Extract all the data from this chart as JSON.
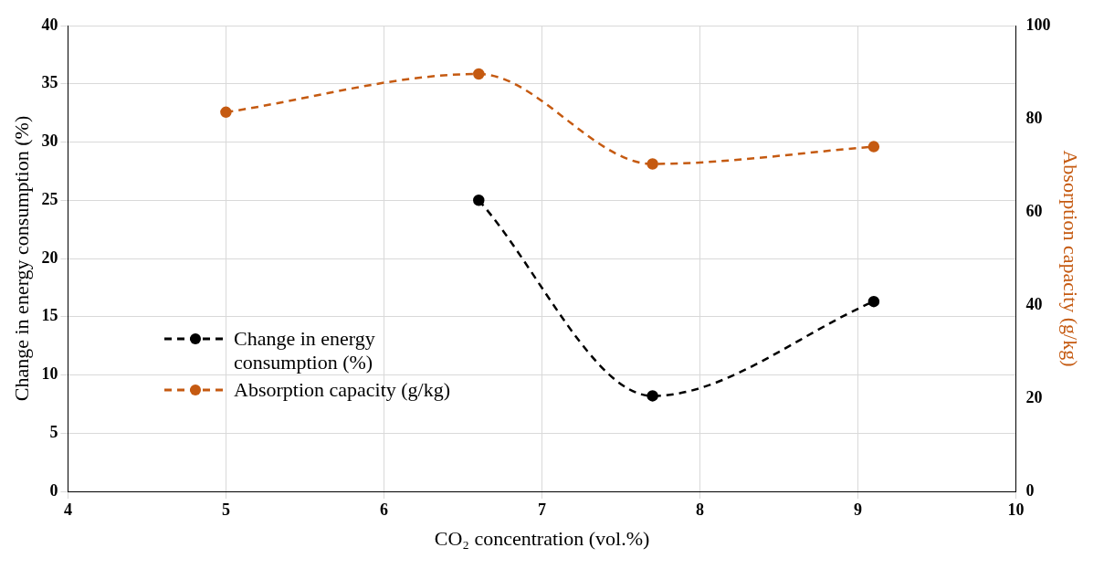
{
  "chart_data": {
    "type": "line",
    "xlabel": "CO₂ concentration (vol.%)",
    "ylabel": "Change in energy consumption (%)",
    "y2label": "Absorption capacity (g/kg)",
    "series": [
      {
        "name": "Change in energy consumption (%)",
        "color": "#000000",
        "x": [
          6.6,
          7.7,
          9.1
        ],
        "values": [
          25.0,
          8.2,
          16.3
        ]
      },
      {
        "name": "Absorption capacity (g/kg)",
        "color": "#c55a11",
        "axis": "y2",
        "x": [
          5,
          6.6,
          7.7,
          9.1
        ],
        "values": [
          81.4,
          89.6,
          70.3,
          74.0
        ]
      }
    ],
    "xlim": [
      4,
      10
    ],
    "xticks": [
      4,
      5,
      6,
      7,
      8,
      9,
      10
    ],
    "ylim": [
      0,
      40
    ],
    "yticks": [
      0,
      5,
      10,
      15,
      20,
      25,
      30,
      35,
      40
    ],
    "y2lim": [
      0,
      100
    ],
    "y2ticks": [
      0,
      20,
      40,
      60,
      80,
      100
    ],
    "grid": true,
    "legend": "bottom left",
    "marker": "circle",
    "line_style": "dashed"
  }
}
